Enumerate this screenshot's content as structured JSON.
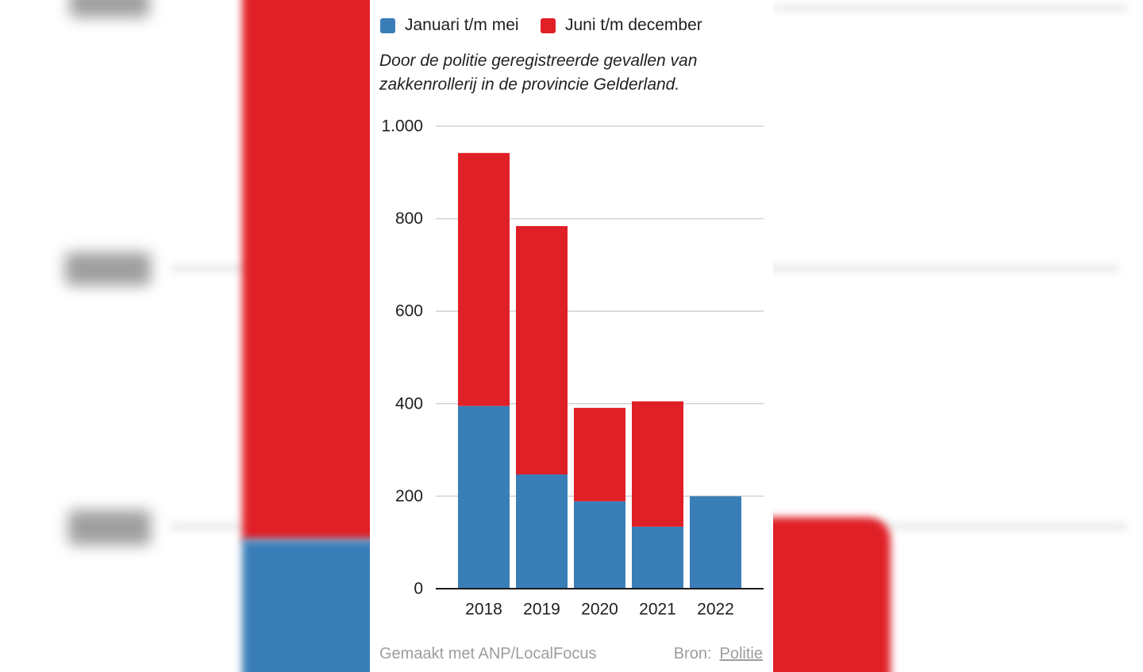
{
  "chart_data": {
    "type": "bar",
    "stacked": true,
    "title": "",
    "subtitle": "Door de politie geregistreerde gevallen van zakkenrollerij in de provincie Gelderland.",
    "xlabel": "",
    "ylabel": "",
    "categories": [
      "2018",
      "2019",
      "2020",
      "2021",
      "2022"
    ],
    "series": [
      {
        "name": "Januari t/m mei",
        "color": "#3a7eb8",
        "values": [
          395,
          247,
          189,
          134,
          200
        ]
      },
      {
        "name": "Juni t/m december",
        "color": "#e02027",
        "values": [
          547,
          537,
          202,
          271,
          null
        ]
      }
    ],
    "ylim": [
      0,
      1000
    ],
    "yticks": [
      0,
      200,
      400,
      600,
      800,
      1000
    ],
    "ytick_labels": [
      "0",
      "200",
      "400",
      "600",
      "800",
      "1.000"
    ],
    "grid": true,
    "legend": "top-left"
  },
  "footer": {
    "credit": "Gemaakt met ANP/LocalFocus",
    "source_label": "Bron:",
    "source_link": "Politie"
  }
}
